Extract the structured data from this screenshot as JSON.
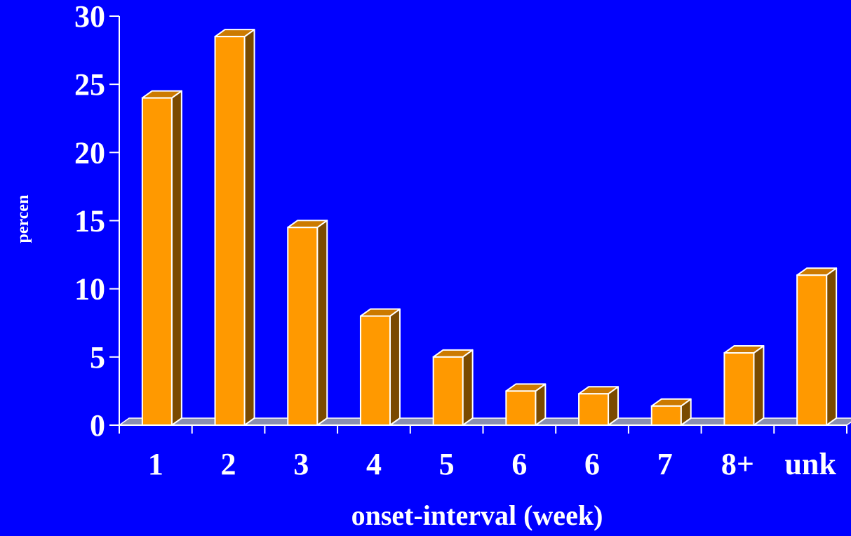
{
  "chart_data": {
    "type": "bar",
    "title": "",
    "xlabel": "onset-interval (week)",
    "ylabel": "percen",
    "categories": [
      "1",
      "2",
      "3",
      "4",
      "5",
      "6",
      "6",
      "7",
      "8+",
      "unk"
    ],
    "values": [
      24,
      28.5,
      14.5,
      8,
      5,
      2.5,
      2.3,
      1.4,
      5.3,
      11
    ],
    "ylim": [
      0,
      30
    ],
    "yticks": [
      "0",
      "5",
      "10",
      "15",
      "20",
      "25",
      "30"
    ],
    "grid": false,
    "legend": "none",
    "style": "3d-bar",
    "colors": {
      "background": "#0000ff",
      "bar_front": "#ff9900",
      "bar_side": "#7a4a00",
      "bar_top": "#cc7a00",
      "bar_outline": "#ffffff",
      "floor": "#8a8fb0",
      "axis": "#ffffff",
      "text": "#ffffff"
    }
  }
}
